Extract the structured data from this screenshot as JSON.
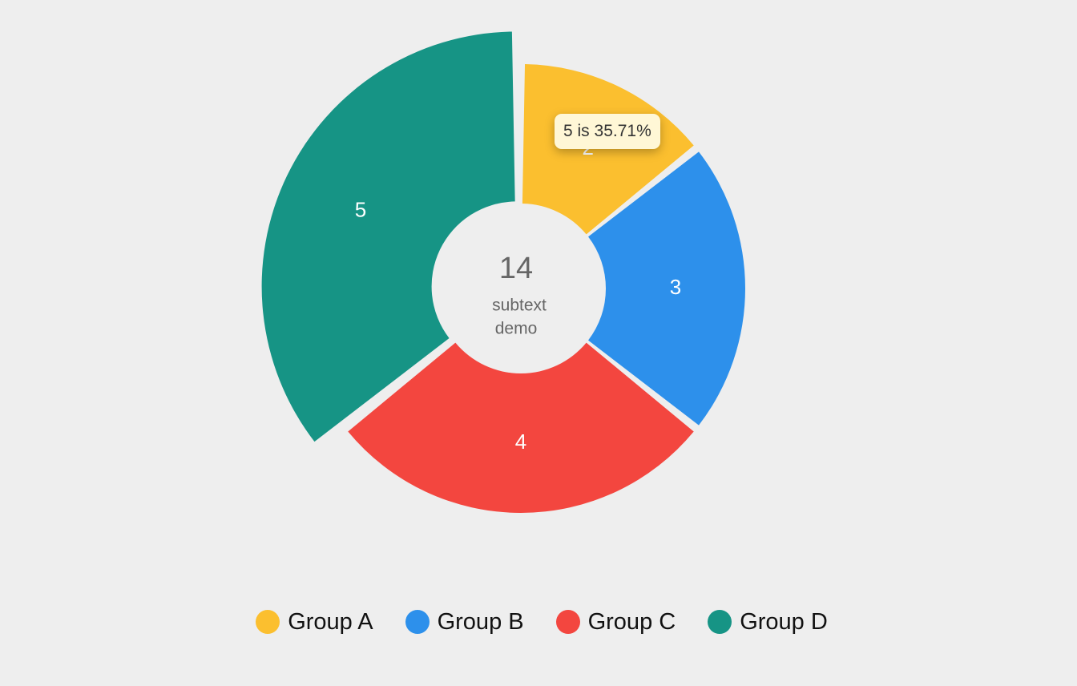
{
  "chart_data": {
    "type": "pie",
    "variant": "donut",
    "categories": [
      "Group A",
      "Group B",
      "Group C",
      "Group D"
    ],
    "values": [
      2,
      3,
      4,
      5
    ],
    "data_labels": [
      "2",
      "3",
      "4",
      "5"
    ],
    "colors": [
      "#fbbf2f",
      "#2d90eb",
      "#f3463f",
      "#169485"
    ],
    "highlighted_slice": "Group D",
    "center": {
      "value": "14",
      "subtext_line1": "subtext",
      "subtext_line2": "demo"
    },
    "tooltip": "5 is 35.71%",
    "legend_position": "bottom"
  }
}
